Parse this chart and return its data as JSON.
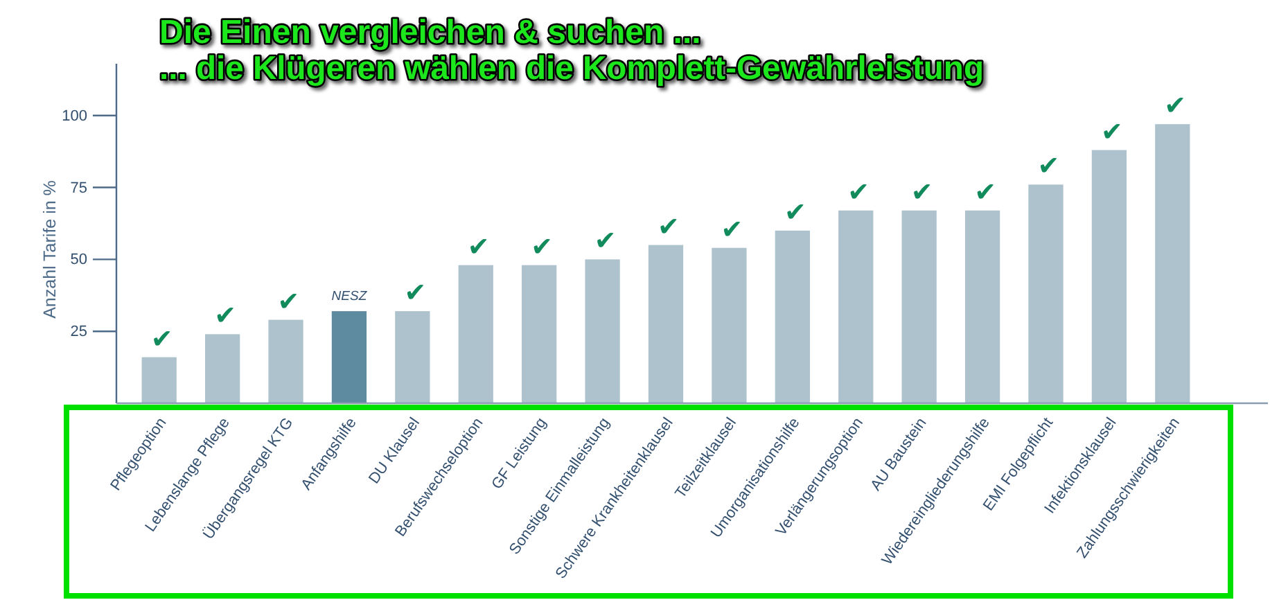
{
  "chart_data": {
    "type": "bar",
    "title": "Die Einen vergleichen & suchen ...",
    "subtitle": "... die Klügeren wählen die Komplett-Gewährleistung",
    "ylabel": "Anzahl Tarife in %",
    "categories": [
      "Pflegeoption",
      "Lebenslange Pflege",
      "Übergangsregel KTG",
      "Anfangshilfe",
      "DU Klausel",
      "Berufswechseloption",
      "GF Leistung",
      "Sonstige Einmalleistung",
      "Schwere Krankheitenklausel",
      "Teilzeitklausel",
      "Umorganisationshilfe",
      "Verlängerungsoption",
      "AU Baustein",
      "Wiedereingliederungshilfe",
      "EMI Folgepflicht",
      "Infektionsklausel",
      "Zahlungsschwierigkeiten"
    ],
    "values": [
      16,
      24,
      29,
      32,
      32,
      48,
      48,
      50,
      55,
      54,
      60,
      67,
      67,
      67,
      76,
      88,
      97
    ],
    "colors": [
      "#aec2ce",
      "#aec2ce",
      "#aec2ce",
      "#5f8ba1",
      "#aec2ce",
      "#aec2ce",
      "#aec2ce",
      "#aec2ce",
      "#aec2ce",
      "#aec2ce",
      "#aec2ce",
      "#aec2ce",
      "#aec2ce",
      "#aec2ce",
      "#aec2ce",
      "#aec2ce",
      "#aec2ce"
    ],
    "value_labels": [
      "✔",
      "✔",
      "✔",
      null,
      "✔",
      "✔",
      "✔",
      "✔",
      "✔",
      "✔",
      "✔",
      "✔",
      "✔",
      "✔",
      "✔",
      "✔",
      "✔"
    ],
    "annotations": [
      {
        "text": "NESZ",
        "x": "Anfangshilfe",
        "y": 32
      }
    ],
    "ylim": [
      0,
      118
    ],
    "yticks": [
      25,
      50,
      75,
      100
    ]
  }
}
